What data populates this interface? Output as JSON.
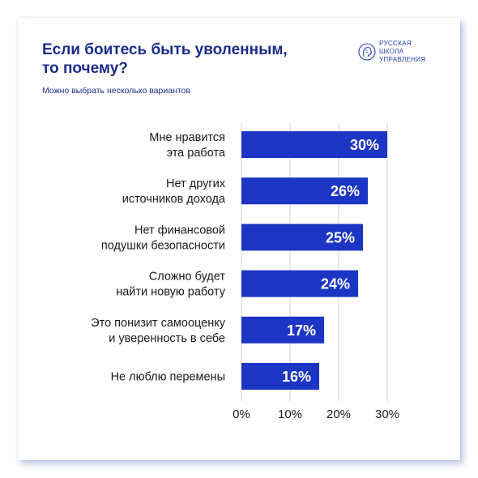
{
  "header": {
    "title": "Если боитесь быть уволенным,\nто почему?",
    "subtitle": "Можно выбрать несколько вариантов"
  },
  "logo": {
    "lines": [
      "РУССКАЯ",
      "ШКОЛА",
      "УПРАВЛЕНИЯ"
    ],
    "icon": "head-profile-icon"
  },
  "colors": {
    "bar": "#1c35c4",
    "bar_label": "#ffffff",
    "text": "#1c2c8c",
    "grid": "#cfd3dc"
  },
  "chart_data": {
    "type": "bar",
    "orientation": "horizontal",
    "categories": [
      "Мне нравится\nэта работа",
      "Нет других\nисточников дохода",
      "Нет финансовой\nподушки безопасности",
      "Сложно будет\nнайти новую работу",
      "Это понизит самооценку\nи уверенность в себе",
      "Не люблю перемены"
    ],
    "values": [
      30,
      26,
      25,
      24,
      17,
      16
    ],
    "value_labels": [
      "30%",
      "26%",
      "25%",
      "24%",
      "17%",
      "16%"
    ],
    "xlim": [
      0,
      30
    ],
    "xticks": [
      0,
      10,
      20,
      30
    ],
    "xtick_labels": [
      "0%",
      "10%",
      "20%",
      "30%"
    ],
    "grid": true
  }
}
